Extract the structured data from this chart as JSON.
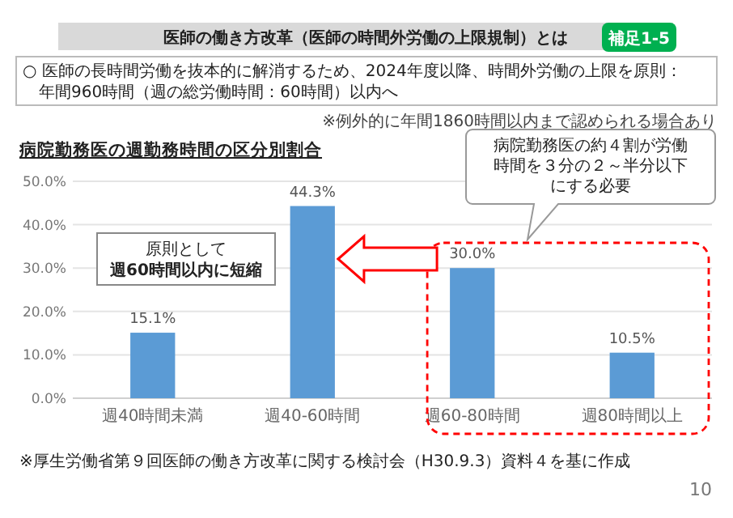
{
  "chart_data": {
    "type": "bar",
    "title": "病院勤務医の週勤務時間の区分別割合",
    "categories": [
      "週40時間未満",
      "週40-60時間",
      "週60-80時間",
      "週80時間以上"
    ],
    "values": [
      15.1,
      44.3,
      30.0,
      10.5
    ],
    "value_labels": [
      "15.1%",
      "44.3%",
      "30.0%",
      "10.5%"
    ],
    "color": "#5b9bd5",
    "ylim": [
      0,
      50
    ],
    "yticks": [
      {
        "value": 0,
        "label": "0.0%"
      },
      {
        "value": 10,
        "label": "10.0%"
      },
      {
        "value": 20,
        "label": "20.0%"
      },
      {
        "value": 30,
        "label": "30.0%"
      },
      {
        "value": 40,
        "label": "40.0%"
      },
      {
        "value": 50,
        "label": "50.0%"
      }
    ],
    "grid": "y",
    "annotations": [
      "医師の働き方改革（医師の時間外労働の上限規制）とは",
      "補足1-5",
      "○ 医師の長時間労働を抜本的に解消するため、2024年度以降、時間外労働の上限を原則：年間960時間（週の総労働時間：60時間）以内へ",
      "※例外的に年間1860時間以内まで認められる場合あり",
      "病院勤務医の約４割が労働時間を３分の２～半分以下にする必要",
      "原則として週60時間以内に短縮",
      "※厚生労働省第９回医師の働き方改革に関する検討会（H30.9.3）資料４を基に作成",
      "10"
    ]
  }
}
